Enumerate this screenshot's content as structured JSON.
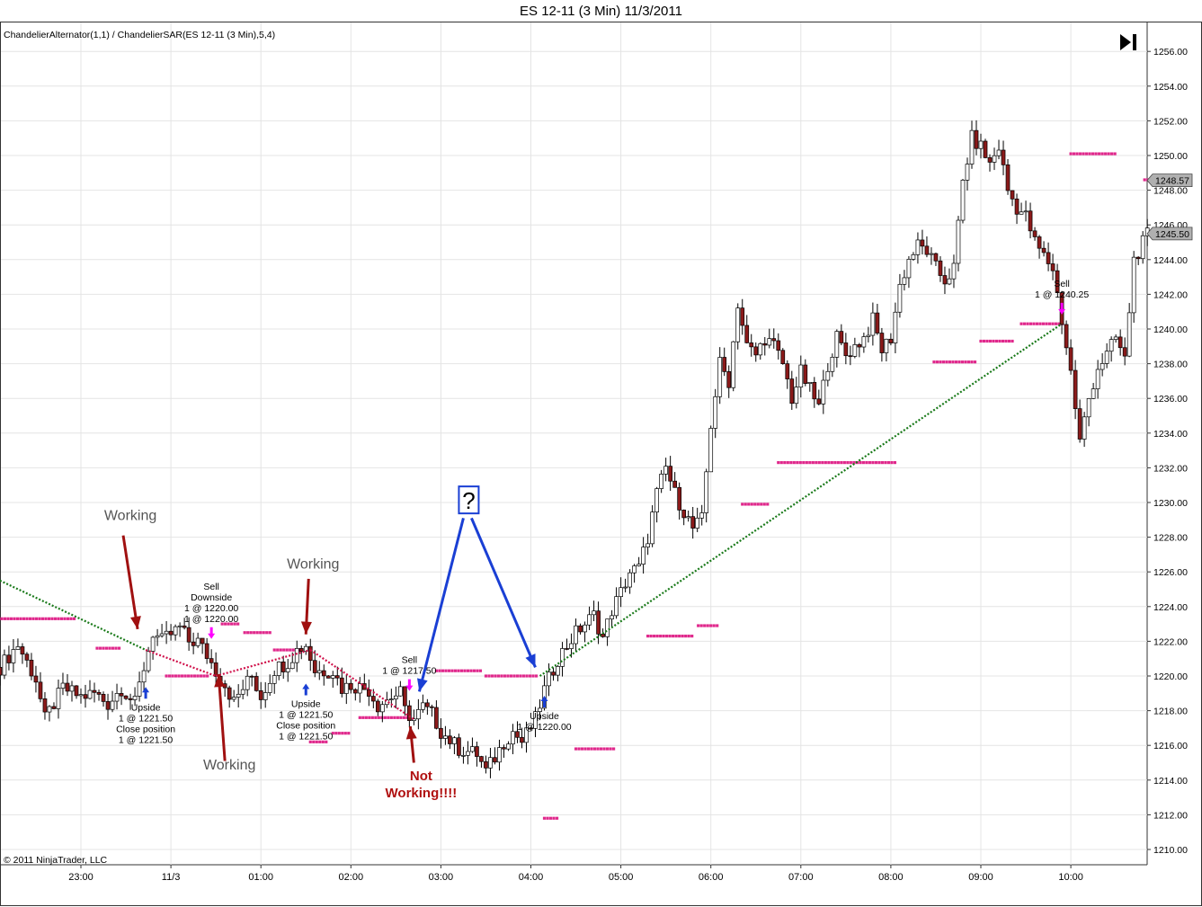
{
  "window": {
    "title": "ES 12-11 (3 Min)  11/3/2011",
    "indicator_label": "ChandelierAlternator(1,1) / ChandelierSAR(ES 12-11 (3 Min),5,4)",
    "copyright": "© 2011 NinjaTrader, LLC",
    "goto_end_icon": "skip-to-end-icon"
  },
  "colors": {
    "up_candle": "#ffffff",
    "down_candle": "#8b1a1a",
    "sar_dots": "#e0288c",
    "trend_line": "#1a7a1a",
    "short_line": "#d0104a",
    "annotation_red": "#a01010",
    "annotation_blue": "#1a3fd4",
    "marker_magenta": "#ff00ff",
    "price_tag": "#b0b0b0"
  },
  "chart_data": {
    "type": "candlestick",
    "title": "ES 12-11 (3 Min)  11/3/2011",
    "instrument": "ES 12-11",
    "interval": "3 Min",
    "y_axis": {
      "ylim": [
        1209.5,
        1256.8
      ],
      "ticks": [
        "1210.00",
        "1212.00",
        "1214.00",
        "1216.00",
        "1218.00",
        "1220.00",
        "1222.00",
        "1224.00",
        "1226.00",
        "1228.00",
        "1230.00",
        "1232.00",
        "1234.00",
        "1236.00",
        "1238.00",
        "1240.00",
        "1242.00",
        "1244.00",
        "1246.00",
        "1248.00",
        "1250.00",
        "1252.00",
        "1254.00",
        "1256.00"
      ],
      "grid": true,
      "position": "right"
    },
    "x_axis": {
      "tick_labels": [
        "23:00",
        "11/3",
        "01:00",
        "02:00",
        "03:00",
        "04:00",
        "05:00",
        "06:00",
        "07:00",
        "08:00",
        "09:00",
        "10:00"
      ],
      "tick_hours": [
        -1,
        0,
        1,
        2,
        3,
        4,
        5,
        6,
        7,
        8,
        9,
        10
      ],
      "xlim": [
        -1.9,
        10.86
      ],
      "grid": true
    },
    "price_tags": [
      {
        "label": "1248.57",
        "value": 1248.57
      },
      {
        "label": "1245.50",
        "value": 1245.5
      }
    ],
    "close_path": [
      [
        -1.9,
        1220.5
      ],
      [
        -1.7,
        1221.8
      ],
      [
        -1.5,
        1219.8
      ],
      [
        -1.4,
        1217.5
      ],
      [
        -1.2,
        1219.3
      ],
      [
        -1.0,
        1218.8
      ],
      [
        -0.85,
        1219.0
      ],
      [
        -0.7,
        1218.4
      ],
      [
        -0.55,
        1219.3
      ],
      [
        -0.4,
        1218.4
      ],
      [
        -0.3,
        1220.5
      ],
      [
        -0.2,
        1222.5
      ],
      [
        -0.1,
        1222.0
      ],
      [
        0.1,
        1222.8
      ],
      [
        0.2,
        1222.0
      ],
      [
        0.3,
        1222.0
      ],
      [
        0.4,
        1221.2
      ],
      [
        0.5,
        1220.3
      ],
      [
        0.6,
        1219.5
      ],
      [
        0.7,
        1218.5
      ],
      [
        0.8,
        1219.3
      ],
      [
        0.9,
        1220.0
      ],
      [
        1.0,
        1218.8
      ],
      [
        1.15,
        1220.4
      ],
      [
        1.3,
        1220.8
      ],
      [
        1.4,
        1221.5
      ],
      [
        1.5,
        1221.8
      ],
      [
        1.6,
        1220.3
      ],
      [
        1.8,
        1220.3
      ],
      [
        1.9,
        1219.3
      ],
      [
        2.0,
        1219.5
      ],
      [
        2.2,
        1219.2
      ],
      [
        2.3,
        1218.3
      ],
      [
        2.45,
        1218.8
      ],
      [
        2.55,
        1219.0
      ],
      [
        2.6,
        1218.0
      ],
      [
        2.7,
        1217.5
      ],
      [
        2.8,
        1218.2
      ],
      [
        2.9,
        1217.8
      ],
      [
        3.0,
        1216.8
      ],
      [
        3.2,
        1215.8
      ],
      [
        3.4,
        1215.5
      ],
      [
        3.5,
        1214.5
      ],
      [
        3.6,
        1215.3
      ],
      [
        3.7,
        1216.2
      ],
      [
        3.8,
        1216.8
      ],
      [
        3.9,
        1216.2
      ],
      [
        4.05,
        1217.5
      ],
      [
        4.15,
        1219.2
      ],
      [
        4.3,
        1221.0
      ],
      [
        4.5,
        1222.5
      ],
      [
        4.7,
        1223.5
      ],
      [
        4.8,
        1222.2
      ],
      [
        4.9,
        1223.8
      ],
      [
        5.0,
        1224.8
      ],
      [
        5.1,
        1226.0
      ],
      [
        5.2,
        1226.2
      ],
      [
        5.3,
        1228.0
      ],
      [
        5.4,
        1230.5
      ],
      [
        5.5,
        1232.0
      ],
      [
        5.6,
        1230.5
      ],
      [
        5.7,
        1229.5
      ],
      [
        5.8,
        1228.5
      ],
      [
        5.9,
        1229.0
      ],
      [
        6.0,
        1234.5
      ],
      [
        6.1,
        1238.0
      ],
      [
        6.2,
        1237.0
      ],
      [
        6.3,
        1241.5
      ],
      [
        6.4,
        1239.0
      ],
      [
        6.5,
        1238.5
      ],
      [
        6.6,
        1239.5
      ],
      [
        6.7,
        1239.0
      ],
      [
        6.8,
        1238.0
      ],
      [
        6.9,
        1236.0
      ],
      [
        7.0,
        1237.5
      ],
      [
        7.1,
        1236.5
      ],
      [
        7.2,
        1235.5
      ],
      [
        7.3,
        1238.0
      ],
      [
        7.4,
        1239.5
      ],
      [
        7.5,
        1238.5
      ],
      [
        7.6,
        1239.0
      ],
      [
        7.7,
        1239.5
      ],
      [
        7.8,
        1240.5
      ],
      [
        7.9,
        1238.8
      ],
      [
        8.0,
        1239.5
      ],
      [
        8.1,
        1242.5
      ],
      [
        8.2,
        1244.0
      ],
      [
        8.3,
        1244.8
      ],
      [
        8.4,
        1244.5
      ],
      [
        8.5,
        1243.5
      ],
      [
        8.6,
        1242.8
      ],
      [
        8.7,
        1243.5
      ],
      [
        8.8,
        1248.5
      ],
      [
        8.9,
        1251.0
      ],
      [
        9.0,
        1250.5
      ],
      [
        9.1,
        1249.5
      ],
      [
        9.2,
        1250.5
      ],
      [
        9.3,
        1248.0
      ],
      [
        9.4,
        1247.0
      ],
      [
        9.5,
        1246.5
      ],
      [
        9.6,
        1245.0
      ],
      [
        9.7,
        1244.2
      ],
      [
        9.8,
        1243.5
      ],
      [
        9.9,
        1240.5
      ],
      [
        10.0,
        1237.5
      ],
      [
        10.1,
        1233.5
      ],
      [
        10.2,
        1236.0
      ],
      [
        10.3,
        1237.8
      ],
      [
        10.4,
        1238.5
      ],
      [
        10.5,
        1239.5
      ],
      [
        10.6,
        1238.2
      ],
      [
        10.7,
        1244.0
      ],
      [
        10.86,
        1245.5
      ]
    ],
    "sar_steps": [
      {
        "from": -1.88,
        "to": -1.05,
        "value": 1223.3
      },
      {
        "from": -0.82,
        "to": -0.55,
        "value": 1221.6
      },
      {
        "from": -0.05,
        "to": 0.42,
        "value": 1220.0
      },
      {
        "from": 0.57,
        "to": 0.75,
        "value": 1223.0
      },
      {
        "from": 0.82,
        "to": 1.1,
        "value": 1222.5
      },
      {
        "from": 1.15,
        "to": 1.45,
        "value": 1221.5
      },
      {
        "from": 1.55,
        "to": 1.75,
        "value": 1216.2
      },
      {
        "from": 1.8,
        "to": 2.0,
        "value": 1216.7
      },
      {
        "from": 2.1,
        "to": 2.65,
        "value": 1217.6
      },
      {
        "from": 2.95,
        "to": 3.45,
        "value": 1220.3
      },
      {
        "from": 3.5,
        "to": 4.08,
        "value": 1220.0
      },
      {
        "from": 4.15,
        "to": 4.3,
        "value": 1211.8
      },
      {
        "from": 4.5,
        "to": 4.95,
        "value": 1215.8
      },
      {
        "from": 5.3,
        "to": 5.82,
        "value": 1222.3
      },
      {
        "from": 5.86,
        "to": 6.07,
        "value": 1222.9
      },
      {
        "from": 6.35,
        "to": 6.65,
        "value": 1229.9
      },
      {
        "from": 6.75,
        "to": 8.05,
        "value": 1232.3
      },
      {
        "from": 8.48,
        "to": 8.95,
        "value": 1238.1
      },
      {
        "from": 9.0,
        "to": 9.38,
        "value": 1239.3
      },
      {
        "from": 9.45,
        "to": 9.92,
        "value": 1240.3
      },
      {
        "from": 10.0,
        "to": 10.5,
        "value": 1250.1
      },
      {
        "from": 10.82,
        "to": 10.99,
        "value": 1248.6
      }
    ],
    "trend_lines": [
      {
        "name": "chandelier-alternator-long-1",
        "from": [
          -1.9,
          1225.5
        ],
        "to": [
          -0.28,
          1221.5
        ],
        "color": "#1a7a1a"
      },
      {
        "name": "chandelier-alternator-short-1",
        "from": [
          -0.28,
          1221.5
        ],
        "to": [
          0.5,
          1220.0
        ],
        "color": "#d0104a"
      },
      {
        "name": "chandelier-alternator-short-2",
        "from": [
          0.5,
          1220.0
        ],
        "to": [
          1.55,
          1221.5
        ],
        "color": "#d0104a"
      },
      {
        "name": "chandelier-alternator-short-3",
        "from": [
          1.55,
          1221.5
        ],
        "to": [
          2.7,
          1217.5
        ],
        "color": "#d0104a"
      },
      {
        "name": "chandelier-alternator-long-2",
        "from": [
          4.1,
          1220.0
        ],
        "to": [
          9.9,
          1240.3
        ],
        "color": "#1a7a1a"
      }
    ],
    "trade_markers": [
      {
        "name": "upside-1",
        "x": -0.28,
        "y": 1219.0,
        "lines": [
          "Upside",
          "1 @ 1221.50",
          "Close position",
          "1 @ 1221.50"
        ],
        "arrow": "up",
        "color": "#1a3fd4"
      },
      {
        "name": "downside-1",
        "x": 0.45,
        "y": 1222.5,
        "lines": [
          "Sell",
          "Downside",
          "1 @ 1220.00",
          "1 @ 1220.00"
        ],
        "arrow": "down",
        "color": "#ff00ff"
      },
      {
        "name": "upside-2",
        "x": 1.5,
        "y": 1219.2,
        "lines": [
          "Upside",
          "1 @ 1221.50",
          "Close position",
          "1 @ 1221.50"
        ],
        "arrow": "up",
        "color": "#1a3fd4"
      },
      {
        "name": "sell-1",
        "x": 2.65,
        "y": 1219.5,
        "lines": [
          "Sell",
          "1 @ 1217.50"
        ],
        "arrow": "down",
        "color": "#ff00ff"
      },
      {
        "name": "upside-3",
        "x": 4.15,
        "y": 1218.5,
        "lines": [
          "Upside",
          "1 @ 1220.00"
        ],
        "arrow": "up",
        "color": "#1a3fd4"
      },
      {
        "name": "sell-2",
        "x": 9.9,
        "y": 1241.2,
        "lines": [
          "Sell",
          "1 @ 1240.25"
        ],
        "arrow": "down",
        "color": "#ff00ff"
      }
    ],
    "annotations": [
      {
        "name": "working-label-1",
        "text": "Working",
        "x": -0.45,
        "y": 1229.0,
        "color": "#555555",
        "bold": false
      },
      {
        "name": "working-label-2",
        "text": "Working",
        "x": 0.65,
        "y": 1214.6,
        "color": "#555555",
        "bold": false
      },
      {
        "name": "working-label-3",
        "text": "Working",
        "x": 1.58,
        "y": 1226.2,
        "color": "#555555",
        "bold": false
      },
      {
        "name": "not-working-label",
        "text": "Not",
        "x": 2.78,
        "y": 1214.0,
        "color": "#b01010",
        "bold": true
      },
      {
        "name": "not-working-label-2",
        "text": "Working!!!!",
        "x": 2.78,
        "y": 1213.0,
        "color": "#b01010",
        "bold": true
      },
      {
        "name": "question-box",
        "text": "?",
        "x": 3.31,
        "y": 1230.2,
        "color": "#1a3fd4",
        "bold": false
      }
    ]
  }
}
